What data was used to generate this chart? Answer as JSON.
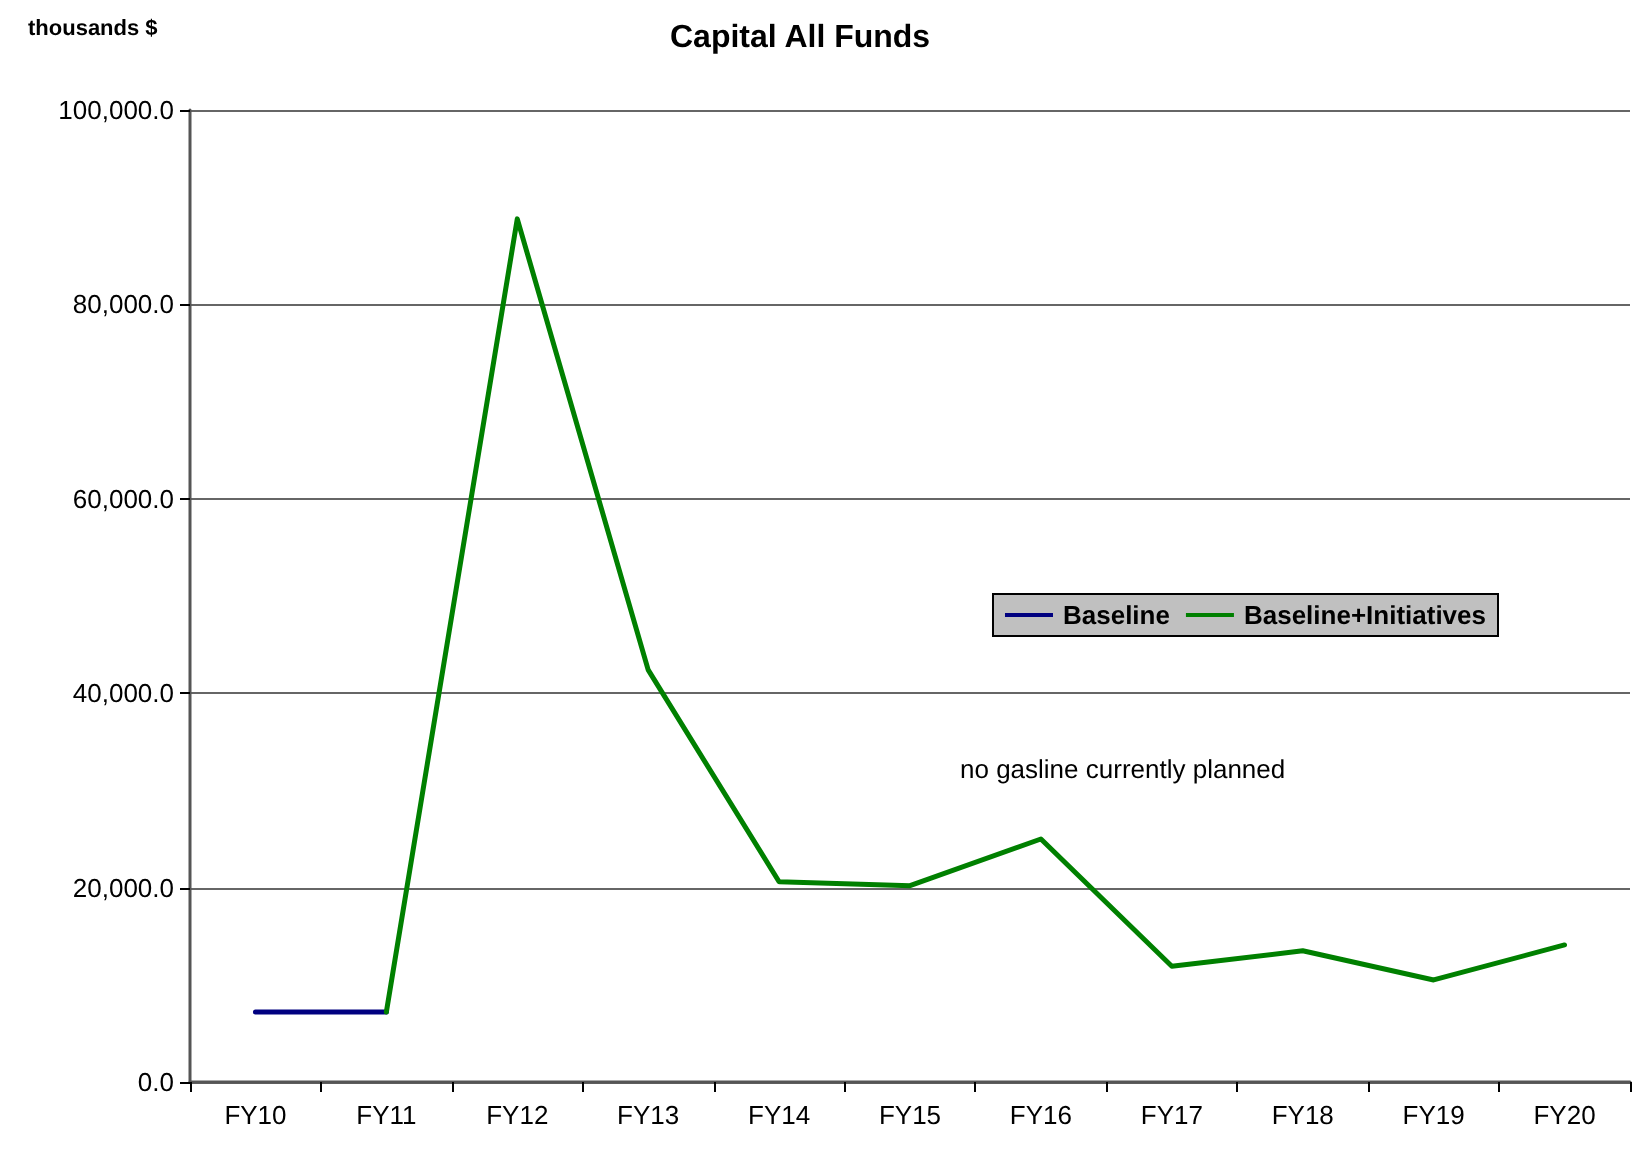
{
  "chart_data": {
    "type": "line",
    "title": "Capital All Funds",
    "ylabel": "thousands $",
    "categories": [
      "FY10",
      "FY11",
      "FY12",
      "FY13",
      "FY14",
      "FY15",
      "FY16",
      "FY17",
      "FY18",
      "FY19",
      "FY20"
    ],
    "series": [
      {
        "name": "Baseline",
        "color": "#000080",
        "values": [
          7200,
          7200,
          null,
          null,
          null,
          null,
          null,
          null,
          null,
          null,
          null
        ]
      },
      {
        "name": "Baseline+Initiatives",
        "color": "#008000",
        "values": [
          null,
          7200,
          88800,
          42400,
          20600,
          20200,
          25000,
          11900,
          13500,
          10500,
          14100
        ]
      }
    ],
    "ylim": [
      0,
      100000
    ],
    "yticks": [
      {
        "value": 0,
        "label": "0.0"
      },
      {
        "value": 20000,
        "label": "20,000.0"
      },
      {
        "value": 40000,
        "label": "40,000.0"
      },
      {
        "value": 60000,
        "label": "60,000.0"
      },
      {
        "value": 80000,
        "label": "80,000.0"
      },
      {
        "value": 100000,
        "label": "100,000.0"
      }
    ],
    "grid": "y",
    "legend": "right",
    "marker": "none",
    "line_style": "solid",
    "annotations": [
      "no gasline currently planned"
    ]
  }
}
